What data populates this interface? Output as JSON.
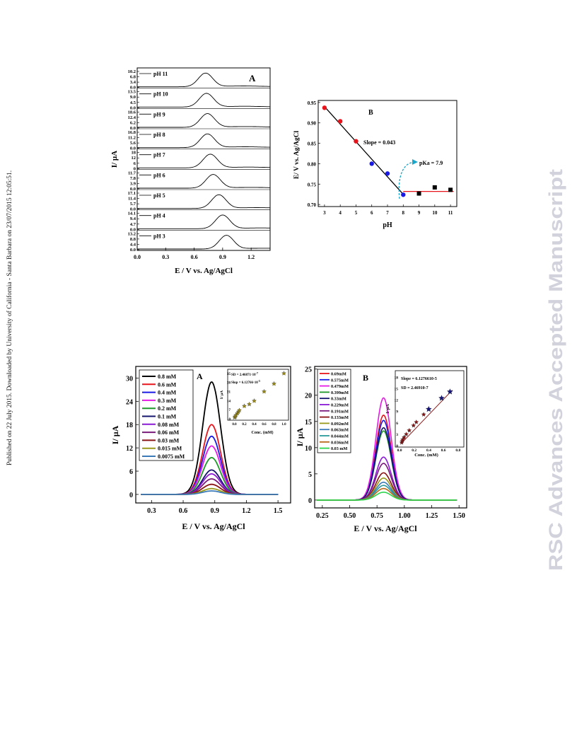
{
  "side_note": "Published on 22 July 2015. Downloaded by University of California - Santa Barbara on 23/07/2015 12:05:51.",
  "watermark": "RSC Advances Accepted Manuscript",
  "figure1": {
    "panelA": {
      "letter": "A",
      "ylabel": "I/ µA",
      "xlabel": "E / V vs. Ag/AgCl",
      "xticks": [
        "0.0",
        "0.3",
        "0.6",
        "0.9",
        "1.2"
      ],
      "traces": [
        {
          "label": "pH 11",
          "ticks": [
            "10.2",
            "6.8",
            "3.4",
            "0.0"
          ],
          "peak": 0.72
        },
        {
          "label": "pH 10",
          "ticks": [
            "13.5",
            "9.0",
            "4.5",
            "0.0"
          ],
          "peak": 0.73
        },
        {
          "label": "pH 9",
          "ticks": [
            "18.6",
            "12.4",
            "6.2",
            "0.0"
          ],
          "peak": 0.74
        },
        {
          "label": "pH 8",
          "ticks": [
            "16.8",
            "11.2",
            "5.6",
            "0.0"
          ],
          "peak": 0.74
        },
        {
          "label": "pH 7",
          "ticks": [
            "18",
            "12",
            "6",
            "0"
          ],
          "peak": 0.77
        },
        {
          "label": "pH 6",
          "ticks": [
            "11.7",
            "7.8",
            "3.9",
            "0.0"
          ],
          "peak": 0.8
        },
        {
          "label": "pH 5",
          "ticks": [
            "17.1",
            "11.4",
            "5.7",
            "0.0"
          ],
          "peak": 0.86
        },
        {
          "label": "pH 4",
          "ticks": [
            "14.1",
            "9.4",
            "4.7",
            "0.0"
          ],
          "peak": 0.9
        },
        {
          "label": "pH 3",
          "ticks": [
            "13.2",
            "8.8",
            "4.4",
            "0.0"
          ],
          "peak": 0.94
        }
      ]
    },
    "panelB": {
      "letter": "B",
      "slope_text": "Slope = 0.043",
      "pka_text": "pKa = 7.9",
      "ylabel": "E/ V vs. Ag/AgCl",
      "xlabel": "pH",
      "yticks": [
        "0.95",
        "0.90",
        "0.85",
        "0.80",
        "0.75",
        "0.70"
      ],
      "xticks": [
        "3",
        "4",
        "5",
        "6",
        "7",
        "8",
        "9",
        "10",
        "11"
      ]
    }
  },
  "figure2": {
    "panelA": {
      "letter": "A",
      "ylabel": "I/ µA",
      "xlabel": "E / V vs. Ag/AgCl",
      "yticks": [
        "30",
        "24",
        "18",
        "12",
        "6",
        "0"
      ],
      "xticks": [
        "0.3",
        "0.6",
        "0.9",
        "1.2",
        "1.5"
      ],
      "legend": [
        {
          "label": "0.8 mM",
          "color": "#000000"
        },
        {
          "label": "0.6 mM",
          "color": "#e8141c"
        },
        {
          "label": "0.4 mM",
          "color": "#1a1ae6"
        },
        {
          "label": "0.3 mM",
          "color": "#e61ae6"
        },
        {
          "label": "0.2 mM",
          "color": "#1f9a2a"
        },
        {
          "label": "0.1 mM",
          "color": "#14146e"
        },
        {
          "label": "0.08 mM",
          "color": "#8a1ad6"
        },
        {
          "label": "0.06 mM",
          "color": "#7a1a7a"
        },
        {
          "label": "0.03 mM",
          "color": "#8a1414"
        },
        {
          "label": "0.015 mM",
          "color": "#9a9a1a"
        },
        {
          "label": "0.0075 mM",
          "color": "#3a7ab8"
        }
      ],
      "inset": {
        "sd_text": "SD = 2.46871·10",
        "sd_exp": "-7",
        "slope_text": "Slop = 6.12766·10",
        "slope_exp": "-5",
        "ylabel": "I/ µA",
        "xlabel": "Conc. (mM)",
        "yticks": [
          "35",
          "28",
          "21",
          "14",
          "7",
          "0"
        ],
        "xticks": [
          "0.0",
          "0.2",
          "0.4",
          "0.6",
          "0.8",
          "1.0"
        ]
      }
    },
    "panelB": {
      "letter": "B",
      "ylabel": "I/ µA",
      "xlabel": "E / V vs. Ag/AgCl",
      "yticks": [
        "25",
        "20",
        "15",
        "10",
        "5",
        "0"
      ],
      "xticks": [
        "0.25",
        "0.50",
        "0.75",
        "1.00",
        "1.25",
        "1.50"
      ],
      "legend": [
        {
          "label": "0.69mM",
          "color": "#e8141c"
        },
        {
          "label": "0.575mM",
          "color": "#1a1ae6"
        },
        {
          "label": "0.479mM",
          "color": "#e61ae6"
        },
        {
          "label": "0.399mM",
          "color": "#1f9a2a"
        },
        {
          "label": "0.33mM",
          "color": "#14146e"
        },
        {
          "label": "0.229mM",
          "color": "#8a1ad6"
        },
        {
          "label": "0.191mM",
          "color": "#7a1a7a"
        },
        {
          "label": "0.133mM",
          "color": "#8a1414"
        },
        {
          "label": "0.092mM",
          "color": "#9a9a1a"
        },
        {
          "label": "0.063mM",
          "color": "#3a7ab8"
        },
        {
          "label": "0.044mM",
          "color": "#2a9a9a"
        },
        {
          "label": "0.036mM",
          "color": "#b86a1a"
        },
        {
          "label": "0.03 mM",
          "color": "#2ad64a"
        }
      ],
      "inset": {
        "slope_text": "Slope = 6.1276610-5",
        "sd_text": "SD = 2.46910-7",
        "ylabel": "I/ µA",
        "xlabel": "Conc. (mM)",
        "yticks": [
          "18",
          "15",
          "12",
          "9",
          "6",
          "3",
          "0"
        ],
        "xticks": [
          "0.0",
          "0.2",
          "0.4",
          "0.6",
          "0.8"
        ]
      }
    }
  },
  "chart_data": [
    {
      "type": "line",
      "xlabel": "E / V vs. Ag/AgCl",
      "ylabel": "I/ µA",
      "xlim": [
        0.0,
        1.4
      ],
      "series": [
        {
          "name": "pH 11",
          "peak_x": 0.72
        },
        {
          "name": "pH 10",
          "peak_x": 0.73
        },
        {
          "name": "pH 9",
          "peak_x": 0.74
        },
        {
          "name": "pH 8",
          "peak_x": 0.74
        },
        {
          "name": "pH 7",
          "peak_x": 0.77
        },
        {
          "name": "pH 6",
          "peak_x": 0.8
        },
        {
          "name": "pH 5",
          "peak_x": 0.86
        },
        {
          "name": "pH 4",
          "peak_x": 0.9
        },
        {
          "name": "pH 3",
          "peak_x": 0.94
        }
      ]
    },
    {
      "type": "scatter",
      "xlabel": "pH",
      "ylabel": "E/ V vs. Ag/AgCl",
      "xlim": [
        2.6,
        11.4
      ],
      "ylim": [
        0.695,
        0.955
      ],
      "points": [
        {
          "x": 3,
          "y": 0.937,
          "color": "#e8141c"
        },
        {
          "x": 4,
          "y": 0.904,
          "color": "#e8141c"
        },
        {
          "x": 5,
          "y": 0.855,
          "color": "#e8141c"
        },
        {
          "x": 6,
          "y": 0.8,
          "color": "#1a1ae6"
        },
        {
          "x": 7,
          "y": 0.776,
          "color": "#1a1ae6"
        },
        {
          "x": 8,
          "y": 0.724,
          "color": "#1a1ae6"
        },
        {
          "x": 9,
          "y": 0.727,
          "color": "#000000"
        },
        {
          "x": 10,
          "y": 0.742,
          "color": "#000000"
        },
        {
          "x": 11,
          "y": 0.736,
          "color": "#000000"
        }
      ],
      "fit_lines": [
        {
          "x": [
            3,
            8
          ],
          "y": [
            0.94,
            0.725
          ],
          "color": "#000000"
        },
        {
          "x": [
            8,
            11.2
          ],
          "y": [
            0.732,
            0.732
          ],
          "color": "#e8141c"
        }
      ]
    },
    {
      "type": "line",
      "xlabel": "E / V vs. Ag/AgCl",
      "ylabel": "I/ µA",
      "xlim": [
        0.15,
        1.62
      ],
      "ylim": [
        -2.2,
        33
      ],
      "peak_x": 0.87,
      "series": [
        {
          "name": "0.8 mM",
          "peak": 29.0
        },
        {
          "name": "0.6 mM",
          "peak": 18.0
        },
        {
          "name": "0.4 mM",
          "peak": 15.0
        },
        {
          "name": "0.3 mM",
          "peak": 12.5
        },
        {
          "name": "0.2 mM",
          "peak": 9.5
        },
        {
          "name": "0.1 mM",
          "peak": 6.3
        },
        {
          "name": "0.08 mM",
          "peak": 5.3
        },
        {
          "name": "0.06 mM",
          "peak": 4.0
        },
        {
          "name": "0.03 mM",
          "peak": 2.6
        },
        {
          "name": "0.015 mM",
          "peak": 1.5
        },
        {
          "name": "0.0075 mM",
          "peak": 0.9
        }
      ]
    },
    {
      "type": "scatter",
      "xlabel": "Conc. (mM)",
      "ylabel": "I/ µA",
      "xlim": [
        -0.05,
        1.05
      ],
      "ylim": [
        0,
        36
      ],
      "x": [
        0.0075,
        0.015,
        0.03,
        0.06,
        0.08,
        0.1,
        0.2,
        0.3,
        0.4,
        0.6,
        0.8,
        1.0
      ],
      "y": [
        1,
        1.7,
        2.8,
        4.2,
        5.4,
        6.5,
        9.8,
        11.2,
        13.8,
        21,
        27,
        35
      ]
    },
    {
      "type": "line",
      "xlabel": "E / V vs. Ag/AgCl",
      "ylabel": "I/ µA",
      "xlim": [
        0.18,
        1.57
      ],
      "ylim": [
        -1.5,
        25.5
      ],
      "peak_x": 0.81,
      "series": [
        {
          "name": "0.69mM",
          "peak": 16.2
        },
        {
          "name": "0.575mM",
          "peak": 15.2
        },
        {
          "name": "0.479mM",
          "peak": 19.5
        },
        {
          "name": "0.399mM",
          "peak": 13.2
        },
        {
          "name": "0.33mM",
          "peak": 13.8
        },
        {
          "name": "0.229mM",
          "peak": 8.2
        },
        {
          "name": "0.191mM",
          "peak": 7.0
        },
        {
          "name": "0.133mM",
          "peak": 5.2
        },
        {
          "name": "0.092mM",
          "peak": 4.2
        },
        {
          "name": "0.063mM",
          "peak": 3.4
        },
        {
          "name": "0.044mM",
          "peak": 2.8
        },
        {
          "name": "0.036mM",
          "peak": 2.2
        },
        {
          "name": "0.03 mM",
          "peak": 1.5
        }
      ]
    },
    {
      "type": "scatter",
      "xlabel": "Conc. (mM)",
      "ylabel": "I/ µA",
      "xlim": [
        0.0,
        0.85
      ],
      "ylim": [
        0,
        19
      ],
      "x": [
        0.03,
        0.036,
        0.044,
        0.063,
        0.092,
        0.133,
        0.191,
        0.229,
        0.33,
        0.399,
        0.575,
        0.69
      ],
      "y": [
        0.8,
        1.2,
        1.6,
        2.2,
        3.0,
        4.0,
        5.3,
        6.2,
        8.2,
        9.6,
        12.5,
        14.2
      ]
    }
  ]
}
